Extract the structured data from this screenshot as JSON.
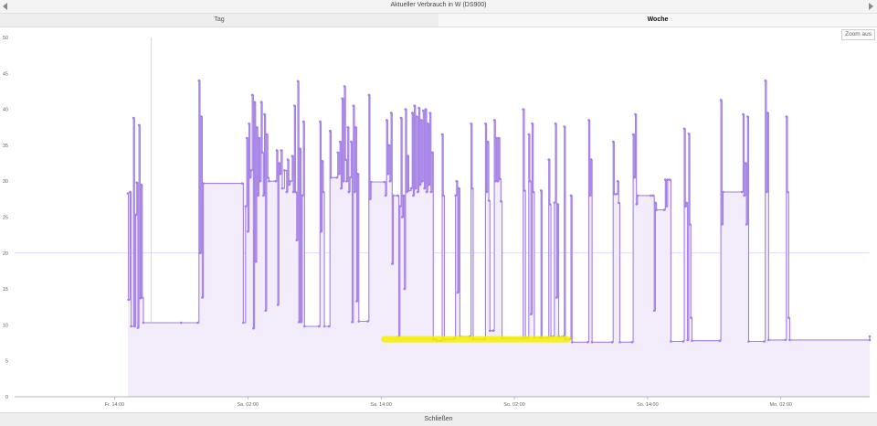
{
  "window": {
    "title": "Aktueller Verbrauch in W (DS900)"
  },
  "tabs": [
    {
      "label": "Tag",
      "active": false
    },
    {
      "label": "Woche",
      "active": true
    }
  ],
  "zoom_out_label": "Zoom aus",
  "footer": {
    "close_label": "Schließen"
  },
  "icons": {
    "prev": "triangle-left-icon",
    "next": "triangle-right-icon"
  },
  "colors": {
    "line": "#a37fe6",
    "fill": "#f3ecfb",
    "highlight": "#f5f000",
    "crosshair": "#c9c3f2"
  },
  "chart_data": {
    "type": "area",
    "title": "Aktueller Verbrauch in W (DS900)",
    "xlabel": "",
    "ylabel": "",
    "ylim": [
      0,
      50
    ],
    "yticks": [
      0,
      5,
      10,
      15,
      20,
      25,
      30,
      35,
      40,
      45,
      50
    ],
    "xlim": [
      "Fr. 05:00",
      "Mo. 10:00"
    ],
    "xticks": [
      {
        "x": 9,
        "label": "Fr. 14:00"
      },
      {
        "x": 21,
        "label": "Sa. 02:00"
      },
      {
        "x": 33,
        "label": "Sa. 14:00"
      },
      {
        "x": 45,
        "label": "So. 02:00"
      },
      {
        "x": 57,
        "label": "So. 14:00"
      },
      {
        "x": 69,
        "label": "Mo. 02:00"
      }
    ],
    "x_range_hours": [
      0,
      77
    ],
    "crosshair": {
      "x": 12.3,
      "y": 20
    },
    "highlight": {
      "x_from": 33.3,
      "x_to": 49.8,
      "y": 8,
      "label": ""
    },
    "series": [
      {
        "name": "",
        "points": [
          [
            10.2,
            28.3
          ],
          [
            10.25,
            13.5
          ],
          [
            10.4,
            28.5
          ],
          [
            10.5,
            9.8
          ],
          [
            10.7,
            38.8
          ],
          [
            10.8,
            9.8
          ],
          [
            10.9,
            25.3
          ],
          [
            11.0,
            29.8
          ],
          [
            11.1,
            9.6
          ],
          [
            11.2,
            37.8
          ],
          [
            11.3,
            13.7
          ],
          [
            11.4,
            29.5
          ],
          [
            11.5,
            13.8
          ],
          [
            11.6,
            10.3
          ],
          [
            15.0,
            10.3
          ],
          [
            16.5,
            10.3
          ],
          [
            16.6,
            44.0
          ],
          [
            16.7,
            20.0
          ],
          [
            16.8,
            39.0
          ],
          [
            16.9,
            13.8
          ],
          [
            17.0,
            29.7
          ],
          [
            20.5,
            29.7
          ],
          [
            20.6,
            10.3
          ],
          [
            20.8,
            26.5
          ],
          [
            20.9,
            36.0
          ],
          [
            21.0,
            23.0
          ],
          [
            21.1,
            38.0
          ],
          [
            21.2,
            30.5
          ],
          [
            21.3,
            31.5
          ],
          [
            21.4,
            42.0
          ],
          [
            21.5,
            9.5
          ],
          [
            21.6,
            41.0
          ],
          [
            21.7,
            18.8
          ],
          [
            21.8,
            37.5
          ],
          [
            21.9,
            28.0
          ],
          [
            22.0,
            36.0
          ],
          [
            22.1,
            30.0
          ],
          [
            22.2,
            41.0
          ],
          [
            22.3,
            34.0
          ],
          [
            22.4,
            28.0
          ],
          [
            22.5,
            39.3
          ],
          [
            22.6,
            12.0
          ],
          [
            22.7,
            36.5
          ],
          [
            22.8,
            30.5
          ],
          [
            22.9,
            30.0
          ],
          [
            23.5,
            30.0
          ],
          [
            23.6,
            34.3
          ],
          [
            23.7,
            12.8
          ],
          [
            23.8,
            32.5
          ],
          [
            23.9,
            31.0
          ],
          [
            24.0,
            34.3
          ],
          [
            24.1,
            29.0
          ],
          [
            24.3,
            31.5
          ],
          [
            24.5,
            28.5
          ],
          [
            24.6,
            33.0
          ],
          [
            24.7,
            29.5
          ],
          [
            24.8,
            30.0
          ],
          [
            25.0,
            33.5
          ],
          [
            25.1,
            28.5
          ],
          [
            25.2,
            40.5
          ],
          [
            25.3,
            28.5
          ],
          [
            25.4,
            21.8
          ],
          [
            25.5,
            43.9
          ],
          [
            25.6,
            10.4
          ],
          [
            25.7,
            34.5
          ],
          [
            25.8,
            10.4
          ],
          [
            25.9,
            28.0
          ],
          [
            26.0,
            38.3
          ],
          [
            26.1,
            9.8
          ],
          [
            27.4,
            9.8
          ],
          [
            27.5,
            38.3
          ],
          [
            27.6,
            23.0
          ],
          [
            27.7,
            32.8
          ],
          [
            27.8,
            28.5
          ],
          [
            27.9,
            9.8
          ],
          [
            28.3,
            9.8
          ],
          [
            28.4,
            37.0
          ],
          [
            28.5,
            30.5
          ],
          [
            29.0,
            30.5
          ],
          [
            29.1,
            34.0
          ],
          [
            29.2,
            31.0
          ],
          [
            29.3,
            35.5
          ],
          [
            29.4,
            29.0
          ],
          [
            29.5,
            41.5
          ],
          [
            29.6,
            30.0
          ],
          [
            29.7,
            43.2
          ],
          [
            29.8,
            33.0
          ],
          [
            29.9,
            30.0
          ],
          [
            30.0,
            37.5
          ],
          [
            30.1,
            28.5
          ],
          [
            30.2,
            30.5
          ],
          [
            30.3,
            35.5
          ],
          [
            30.4,
            10.4
          ],
          [
            30.5,
            40.5
          ],
          [
            30.6,
            28.5
          ],
          [
            30.7,
            37.5
          ],
          [
            30.8,
            13.3
          ],
          [
            30.9,
            31.0
          ],
          [
            31.0,
            10.5
          ],
          [
            31.8,
            10.5
          ],
          [
            31.9,
            42.0
          ],
          [
            32.0,
            27.5
          ],
          [
            32.1,
            29.9
          ],
          [
            33.3,
            29.9
          ],
          [
            33.4,
            28.0
          ],
          [
            33.5,
            38.5
          ],
          [
            33.6,
            31.0
          ],
          [
            33.7,
            35.0
          ],
          [
            33.8,
            30.0
          ],
          [
            33.9,
            39.5
          ],
          [
            34.0,
            18.5
          ],
          [
            34.1,
            28.0
          ],
          [
            34.5,
            28.0
          ],
          [
            34.6,
            8.4
          ],
          [
            34.7,
            26.5
          ],
          [
            34.8,
            38.8
          ],
          [
            34.9,
            25.0
          ],
          [
            35.0,
            28.0
          ],
          [
            35.1,
            15.0
          ],
          [
            35.2,
            40.0
          ],
          [
            35.3,
            28.5
          ],
          [
            35.4,
            33.5
          ],
          [
            35.5,
            28.7
          ],
          [
            35.7,
            29.0
          ],
          [
            35.8,
            39.5
          ],
          [
            35.9,
            28.0
          ],
          [
            36.0,
            40.5
          ],
          [
            36.1,
            29.0
          ],
          [
            36.2,
            39.0
          ],
          [
            36.3,
            28.5
          ],
          [
            36.4,
            40.2
          ],
          [
            36.5,
            29.5
          ],
          [
            36.6,
            38.5
          ],
          [
            36.7,
            30.0
          ],
          [
            36.8,
            39.8
          ],
          [
            36.9,
            29.0
          ],
          [
            37.0,
            40.0
          ],
          [
            37.1,
            28.5
          ],
          [
            37.2,
            38.0
          ],
          [
            37.3,
            29.5
          ],
          [
            37.4,
            39.5
          ],
          [
            37.5,
            28.5
          ],
          [
            37.6,
            34.0
          ],
          [
            37.7,
            8.0
          ],
          [
            38.0,
            7.8
          ],
          [
            38.4,
            7.8
          ],
          [
            38.5,
            36.5
          ],
          [
            38.6,
            28.0
          ],
          [
            38.7,
            8.0
          ],
          [
            39.6,
            8.2
          ],
          [
            39.7,
            28.0
          ],
          [
            39.8,
            30.0
          ],
          [
            39.9,
            14.5
          ],
          [
            40.0,
            29.0
          ],
          [
            40.1,
            8.4
          ],
          [
            41.0,
            8.4
          ],
          [
            41.1,
            38.0
          ],
          [
            41.2,
            29.0
          ],
          [
            41.3,
            8.0
          ],
          [
            42.3,
            8.0
          ],
          [
            42.4,
            38.0
          ],
          [
            42.5,
            28.5
          ],
          [
            42.6,
            35.5
          ],
          [
            42.7,
            27.3
          ],
          [
            42.8,
            9.2
          ],
          [
            43.1,
            9.2
          ],
          [
            43.2,
            38.5
          ],
          [
            43.3,
            30.0
          ],
          [
            43.4,
            36.0
          ],
          [
            43.5,
            30.0
          ],
          [
            43.6,
            36.0
          ],
          [
            43.7,
            30.3
          ],
          [
            43.8,
            27.2
          ],
          [
            43.9,
            8.1
          ],
          [
            45.7,
            8.1
          ],
          [
            45.8,
            40.0
          ],
          [
            45.9,
            28.7
          ],
          [
            46.0,
            8.2
          ],
          [
            46.2,
            8.2
          ],
          [
            46.3,
            36.5
          ],
          [
            46.4,
            30.0
          ],
          [
            46.5,
            11.5
          ],
          [
            46.6,
            38.0
          ],
          [
            46.7,
            28.5
          ],
          [
            46.8,
            8.2
          ],
          [
            47.3,
            8.2
          ],
          [
            47.4,
            28.7
          ],
          [
            47.5,
            8.2
          ],
          [
            48.0,
            8.2
          ],
          [
            48.1,
            33.0
          ],
          [
            48.2,
            26.8
          ],
          [
            48.3,
            8.4
          ],
          [
            48.5,
            8.4
          ],
          [
            48.6,
            27.0
          ],
          [
            48.7,
            38.0
          ],
          [
            48.8,
            13.8
          ],
          [
            48.9,
            26.8
          ],
          [
            49.0,
            8.4
          ],
          [
            49.4,
            8.4
          ],
          [
            49.5,
            37.6
          ],
          [
            49.6,
            8.0
          ],
          [
            50.0,
            8.0
          ],
          [
            50.1,
            28.0
          ],
          [
            50.2,
            7.6
          ],
          [
            51.6,
            7.6
          ],
          [
            51.7,
            38.5
          ],
          [
            51.8,
            28.0
          ],
          [
            51.9,
            33.0
          ],
          [
            52.0,
            7.6
          ],
          [
            53.8,
            7.6
          ],
          [
            53.9,
            35.5
          ],
          [
            54.0,
            28.2
          ],
          [
            54.2,
            28.2
          ],
          [
            54.3,
            30.0
          ],
          [
            54.4,
            27.0
          ],
          [
            54.5,
            7.6
          ],
          [
            55.6,
            7.6
          ],
          [
            55.7,
            36.5
          ],
          [
            55.8,
            30.5
          ],
          [
            55.9,
            39.3
          ],
          [
            56.0,
            26.8
          ],
          [
            56.1,
            28.0
          ],
          [
            57.3,
            28.0
          ],
          [
            57.5,
            28.0
          ],
          [
            57.6,
            12.0
          ],
          [
            57.7,
            27.0
          ],
          [
            57.8,
            26.0
          ],
          [
            58.5,
            26.0
          ],
          [
            58.6,
            30.2
          ],
          [
            58.7,
            26.5
          ],
          [
            58.8,
            30.2
          ],
          [
            59.0,
            30.2
          ],
          [
            59.1,
            7.7
          ],
          [
            60.2,
            7.7
          ],
          [
            60.3,
            37.3
          ],
          [
            60.4,
            26.5
          ],
          [
            60.5,
            27.0
          ],
          [
            60.6,
            7.9
          ],
          [
            60.7,
            36.6
          ],
          [
            60.8,
            24.0
          ],
          [
            60.9,
            11.0
          ],
          [
            61.0,
            7.8
          ],
          [
            63.5,
            7.8
          ],
          [
            63.6,
            41.3
          ],
          [
            63.7,
            24.0
          ],
          [
            63.8,
            28.5
          ],
          [
            65.5,
            28.5
          ],
          [
            65.6,
            39.3
          ],
          [
            65.7,
            28.0
          ],
          [
            65.8,
            32.5
          ],
          [
            65.9,
            24.0
          ],
          [
            66.0,
            39.0
          ],
          [
            66.1,
            7.7
          ],
          [
            67.5,
            7.7
          ],
          [
            67.6,
            44.0
          ],
          [
            67.7,
            28.5
          ],
          [
            67.8,
            39.5
          ],
          [
            67.9,
            7.9
          ],
          [
            69.4,
            7.9
          ],
          [
            69.5,
            39.0
          ],
          [
            69.6,
            28.5
          ],
          [
            69.7,
            11.0
          ],
          [
            69.8,
            7.9
          ],
          [
            77.0,
            7.9
          ],
          [
            77.0,
            8.4
          ]
        ]
      }
    ]
  }
}
